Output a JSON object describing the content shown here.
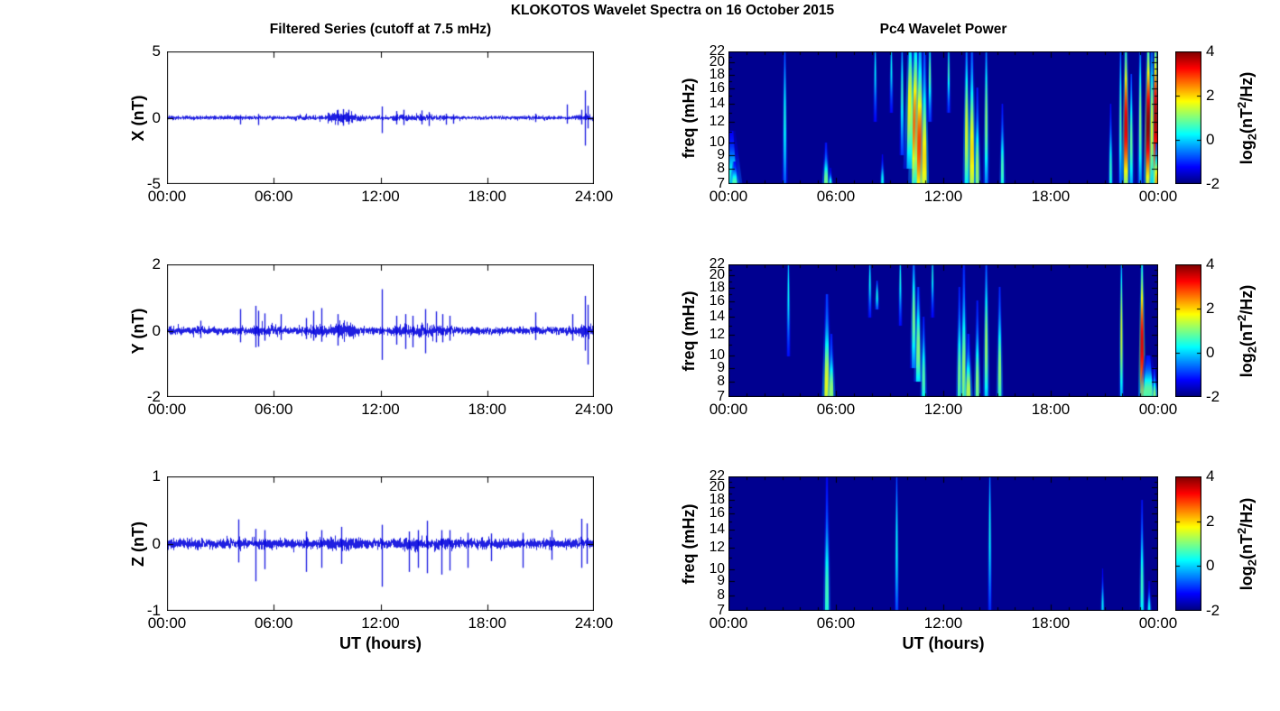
{
  "figure": {
    "title": "KLOKOTOS Wavelet Spectra on 16 October 2015",
    "background": "#ffffff"
  },
  "left_column": {
    "title": "Filtered Series (cutoff at 7.5 mHz)",
    "xlabel": "UT (hours)",
    "xticks": [
      "00:00",
      "06:00",
      "12:00",
      "18:00",
      "24:00"
    ],
    "xlim_hours": [
      0,
      24
    ],
    "line_color": "#0000dd"
  },
  "right_column": {
    "title": "Pc4 Wavelet Power",
    "xlabel": "UT (hours)",
    "xticks": [
      "00:00",
      "06:00",
      "12:00",
      "18:00",
      "00:00"
    ],
    "ylabel": "freq (mHz)",
    "yticks": [
      22,
      20,
      18,
      16,
      14,
      12,
      10,
      9,
      8,
      7
    ],
    "freq_lim_mhz": [
      7,
      22
    ],
    "background_color": "#000090",
    "colorbar": {
      "ticks": [
        4,
        2,
        0,
        -2
      ],
      "clim": [
        -2,
        4
      ],
      "colormap": "jet",
      "label_parts": {
        "pre": "log",
        "sub": "2",
        "mid": "(nT",
        "sup": "2",
        "suf": "/Hz)"
      }
    }
  },
  "chart_data": [
    {
      "type": "line",
      "name": "x-filtered-series",
      "ylabel": "X (nT)",
      "ylim": [
        -5,
        5
      ],
      "yticks": [
        5,
        0,
        -5
      ],
      "x_hours": [
        0,
        24
      ],
      "noise_sigma": 0.07,
      "noise_bursts": [
        [
          9.0,
          10.5,
          0.12
        ],
        [
          10.5,
          11.2,
          0.05
        ],
        [
          12.6,
          15.6,
          0.04
        ],
        [
          7.2,
          9.0,
          0.02
        ],
        [
          22.9,
          24,
          0.04
        ],
        [
          0,
          0.4,
          0.03
        ]
      ],
      "spikes": [
        [
          4.1,
          0.2,
          -0.5
        ],
        [
          5.1,
          0.28,
          -0.55
        ],
        [
          9.6,
          0.6,
          -0.55
        ],
        [
          9.9,
          0.65,
          -0.6
        ],
        [
          10.2,
          0.6,
          -0.5
        ],
        [
          12.1,
          0.85,
          -1.15
        ],
        [
          12.9,
          0.5,
          -0.5
        ],
        [
          13.3,
          0.6,
          -0.55
        ],
        [
          14.3,
          0.55,
          -0.5
        ],
        [
          14.7,
          0.42,
          -0.62
        ],
        [
          15.7,
          0.3,
          -0.52
        ],
        [
          16.1,
          0.25,
          -0.45
        ],
        [
          20.7,
          0.3,
          -0.32
        ],
        [
          22.5,
          1.0,
          -0.45
        ],
        [
          23.3,
          0.6,
          -0.5
        ],
        [
          23.5,
          2.05,
          -2.1
        ],
        [
          23.65,
          0.9,
          -0.8
        ]
      ]
    },
    {
      "type": "line",
      "name": "y-filtered-series",
      "ylabel": "Y (nT)",
      "ylim": [
        -2,
        2
      ],
      "yticks": [
        2,
        0,
        -2
      ],
      "x_hours": [
        0,
        24
      ],
      "noise_sigma": 0.055,
      "noise_bursts": [
        [
          9.6,
          10.6,
          0.06
        ],
        [
          12.7,
          15.8,
          0.03
        ],
        [
          4.8,
          6.3,
          0.02
        ],
        [
          8.0,
          9.9,
          0.025
        ],
        [
          23.2,
          24,
          0.05
        ],
        [
          0,
          0.4,
          0.02
        ]
      ],
      "spikes": [
        [
          1.9,
          0.3,
          -0.22
        ],
        [
          4.1,
          0.65,
          -0.35
        ],
        [
          4.95,
          0.75,
          -0.5
        ],
        [
          5.15,
          0.6,
          -0.48
        ],
        [
          5.5,
          0.52,
          -0.3
        ],
        [
          6.4,
          0.5,
          -0.28
        ],
        [
          7.8,
          0.38,
          -0.25
        ],
        [
          8.2,
          0.6,
          -0.3
        ],
        [
          8.7,
          0.68,
          -0.33
        ],
        [
          9.6,
          0.5,
          -0.45
        ],
        [
          12.1,
          1.25,
          -0.88
        ],
        [
          12.9,
          0.45,
          -0.42
        ],
        [
          13.4,
          0.5,
          -0.55
        ],
        [
          13.8,
          0.45,
          -0.5
        ],
        [
          14.5,
          0.65,
          -0.68
        ],
        [
          15.1,
          0.58,
          -0.35
        ],
        [
          15.5,
          0.5,
          -0.35
        ],
        [
          15.9,
          0.45,
          -0.3
        ],
        [
          20.7,
          0.55,
          -0.28
        ],
        [
          22.8,
          0.5,
          -0.3
        ],
        [
          23.5,
          1.05,
          -0.6
        ],
        [
          23.65,
          0.78,
          -1.02
        ]
      ]
    },
    {
      "type": "line",
      "name": "z-filtered-series",
      "ylabel": "Z (nT)",
      "ylim": [
        -1,
        1
      ],
      "yticks": [
        1,
        0,
        -1
      ],
      "x_hours": [
        0,
        24
      ],
      "noise_sigma": 0.035,
      "noise_bursts": [
        [
          9.0,
          10.8,
          0.015
        ],
        [
          13.0,
          16.0,
          0.008
        ]
      ],
      "spikes": [
        [
          4.0,
          0.36,
          -0.28
        ],
        [
          4.95,
          0.22,
          -0.56
        ],
        [
          5.5,
          0.2,
          -0.38
        ],
        [
          7.8,
          0.18,
          -0.42
        ],
        [
          8.7,
          0.2,
          -0.36
        ],
        [
          9.8,
          0.25,
          -0.3
        ],
        [
          12.1,
          0.28,
          -0.64
        ],
        [
          13.6,
          0.18,
          -0.42
        ],
        [
          14.1,
          0.2,
          -0.36
        ],
        [
          14.6,
          0.34,
          -0.44
        ],
        [
          15.4,
          0.2,
          -0.46
        ],
        [
          15.9,
          0.2,
          -0.4
        ],
        [
          16.9,
          0.16,
          -0.36
        ],
        [
          18.2,
          0.15,
          -0.26
        ],
        [
          20.0,
          0.16,
          -0.36
        ],
        [
          21.6,
          0.2,
          -0.24
        ],
        [
          23.3,
          0.37,
          -0.36
        ],
        [
          23.6,
          0.3,
          -0.3
        ]
      ]
    },
    {
      "type": "heatmap",
      "name": "x-wavelet-power",
      "ylabel": "freq (mHz)",
      "freq_lim": [
        7,
        22
      ],
      "clim": [
        -2,
        4
      ],
      "background_value": -2,
      "streaks": [
        [
          0.15,
          7,
          11,
          0.4,
          0.45,
          0.85
        ],
        [
          0.35,
          7,
          8.5,
          0.7,
          0.2,
          0.9
        ],
        [
          3.15,
          7,
          22,
          0.35,
          0.12,
          0.5
        ],
        [
          5.45,
          7,
          10,
          0.9,
          0.16,
          0.9
        ],
        [
          5.7,
          7,
          8,
          0.5,
          0.1,
          0.9
        ],
        [
          8.2,
          12,
          22,
          0.25,
          0.1,
          0.25
        ],
        [
          8.6,
          7,
          9,
          0.3,
          0.1,
          0.85
        ],
        [
          9.1,
          13,
          22,
          0.3,
          0.1,
          0.25
        ],
        [
          9.7,
          9,
          22,
          0.5,
          0.12,
          0.4
        ],
        [
          10.15,
          8,
          22,
          1.7,
          0.28,
          0.45
        ],
        [
          10.45,
          7,
          22,
          2.6,
          0.3,
          0.55
        ],
        [
          10.7,
          7,
          22,
          2.9,
          0.26,
          0.7
        ],
        [
          10.95,
          7,
          22,
          1.9,
          0.18,
          0.8
        ],
        [
          11.25,
          12,
          22,
          0.8,
          0.12,
          0.3
        ],
        [
          12.3,
          13,
          22,
          0.6,
          0.1,
          0.3
        ],
        [
          13.3,
          7,
          22,
          1.5,
          0.16,
          0.6
        ],
        [
          13.6,
          7,
          22,
          1.9,
          0.18,
          0.75
        ],
        [
          13.9,
          7,
          16,
          1.1,
          0.14,
          0.85
        ],
        [
          14.4,
          7,
          22,
          1.0,
          0.13,
          0.5
        ],
        [
          15.3,
          7,
          14,
          0.6,
          0.12,
          0.8
        ],
        [
          21.35,
          7,
          14,
          0.5,
          0.1,
          0.8
        ],
        [
          21.9,
          7,
          22,
          0.7,
          0.1,
          0.5
        ],
        [
          22.2,
          7,
          22,
          3.4,
          0.17,
          0.55
        ],
        [
          22.5,
          7,
          18,
          0.8,
          0.12,
          0.6
        ],
        [
          23.0,
          7,
          22,
          1.0,
          0.12,
          0.5
        ],
        [
          23.45,
          7,
          22,
          3.9,
          0.2,
          0.55
        ],
        [
          23.65,
          7,
          22,
          1.6,
          0.12,
          0.6
        ],
        [
          23.85,
          7,
          22,
          3.7,
          0.18,
          0.5
        ],
        [
          23.95,
          7,
          10,
          2.2,
          0.2,
          0.9
        ]
      ]
    },
    {
      "type": "heatmap",
      "name": "y-wavelet-power",
      "ylabel": "freq (mHz)",
      "freq_lim": [
        7,
        22
      ],
      "clim": [
        -2,
        4
      ],
      "background_value": -2,
      "streaks": [
        [
          3.35,
          10,
          22,
          0.3,
          0.1,
          0.3
        ],
        [
          5.5,
          7,
          17,
          1.6,
          0.2,
          0.88
        ],
        [
          5.75,
          7,
          12,
          1.1,
          0.16,
          0.88
        ],
        [
          7.9,
          14,
          22,
          0.3,
          0.1,
          0.3
        ],
        [
          8.3,
          15,
          19,
          0.35,
          0.1,
          0.5
        ],
        [
          9.6,
          13,
          22,
          0.4,
          0.1,
          0.25
        ],
        [
          10.35,
          9,
          22,
          0.9,
          0.16,
          0.5
        ],
        [
          10.6,
          8,
          18,
          1.0,
          0.18,
          0.65
        ],
        [
          10.9,
          7,
          14,
          0.7,
          0.14,
          0.75
        ],
        [
          11.4,
          14,
          22,
          0.4,
          0.1,
          0.2
        ],
        [
          12.9,
          7,
          18,
          0.9,
          0.14,
          0.8
        ],
        [
          13.15,
          7,
          22,
          1.1,
          0.16,
          0.8
        ],
        [
          13.4,
          7,
          12,
          1.3,
          0.18,
          0.9
        ],
        [
          13.9,
          7,
          16,
          1.0,
          0.14,
          0.85
        ],
        [
          14.4,
          7,
          22,
          1.1,
          0.14,
          0.6
        ],
        [
          15.15,
          7,
          18,
          1.0,
          0.14,
          0.75
        ],
        [
          21.95,
          7,
          22,
          1.5,
          0.1,
          0.5
        ],
        [
          23.1,
          7,
          22,
          3.4,
          0.15,
          0.6
        ],
        [
          23.45,
          7,
          10,
          0.8,
          0.4,
          0.85
        ],
        [
          23.8,
          7,
          9,
          1.0,
          0.12,
          0.9
        ]
      ]
    },
    {
      "type": "heatmap",
      "name": "z-wavelet-power",
      "ylabel": "freq (mHz)",
      "freq_lim": [
        7,
        22
      ],
      "clim": [
        -2,
        4
      ],
      "background_value": -2,
      "streaks": [
        [
          5.5,
          7,
          22,
          0.6,
          0.15,
          0.85
        ],
        [
          9.4,
          7,
          22,
          0.3,
          0.1,
          0.5
        ],
        [
          14.6,
          7,
          22,
          0.35,
          0.1,
          0.4
        ],
        [
          20.9,
          7,
          10,
          0.18,
          0.08,
          0.85
        ],
        [
          23.1,
          7,
          18,
          0.55,
          0.12,
          0.75
        ],
        [
          23.5,
          7,
          9,
          0.25,
          0.1,
          0.9
        ]
      ]
    }
  ]
}
